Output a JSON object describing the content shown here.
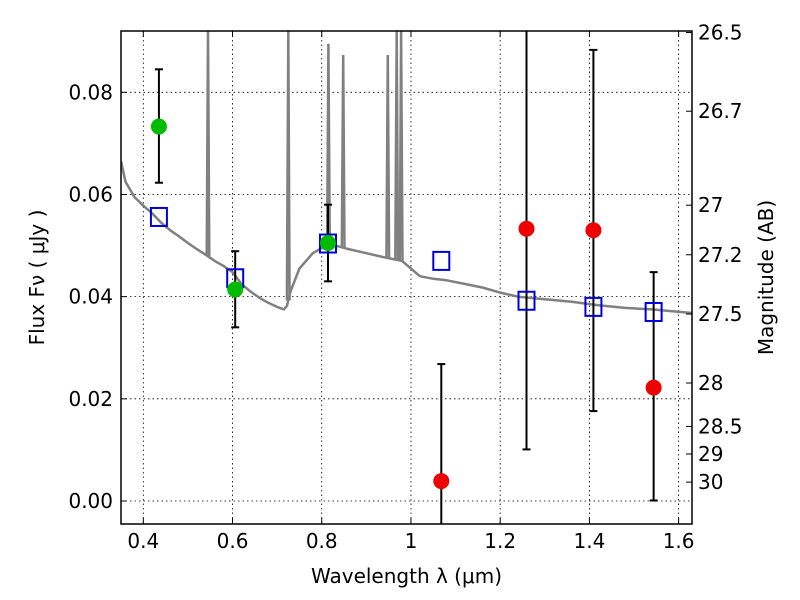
{
  "chart_data": {
    "type": "scatter",
    "xlabel": "Wavelength  λ (μm)",
    "ylabel_left": "Flux  Fν  ( μJy )",
    "ylabel_right": "Magnitude (AB)",
    "xlim": [
      0.35,
      1.63
    ],
    "ylim": [
      -0.0045,
      0.092
    ],
    "x_ticks": [
      0.4,
      0.6,
      0.8,
      1.0,
      1.2,
      1.4,
      1.6
    ],
    "x_tick_labels": [
      "0.4",
      "0.6",
      "0.8",
      "1",
      "1.2",
      "1.4",
      "1.6"
    ],
    "y_ticks": [
      0.0,
      0.02,
      0.04,
      0.06,
      0.08
    ],
    "y_tick_labels": [
      "0.00",
      "0.02",
      "0.04",
      "0.06",
      "0.08"
    ],
    "right_ticks": [
      {
        "label": "26.5",
        "flux": 0.0917
      },
      {
        "label": "26.7",
        "flux": 0.0763
      },
      {
        "label": "27",
        "flux": 0.0579
      },
      {
        "label": "27.2",
        "flux": 0.0482
      },
      {
        "label": "27.5",
        "flux": 0.0366
      },
      {
        "label": "28",
        "flux": 0.0231
      },
      {
        "label": "28.5",
        "flux": 0.0146
      },
      {
        "label": "29",
        "flux": 0.0092
      },
      {
        "label": "30",
        "flux": 0.0037
      }
    ],
    "grid": true,
    "colors": {
      "green_points": "#00bb00",
      "red_points": "#ee0000",
      "model_squares": "#0000dd",
      "spectrum": "#808080",
      "errorbars": "#000000"
    },
    "series": [
      {
        "marker": "circle-green",
        "points": [
          {
            "x": 0.435,
            "y": 0.0733,
            "err_low": 0.0623,
            "err_high": 0.0845
          },
          {
            "x": 0.606,
            "y": 0.0414,
            "err_low": 0.034,
            "err_high": 0.0489
          },
          {
            "x": 0.814,
            "y": 0.0505,
            "err_low": 0.043,
            "err_high": 0.058
          }
        ]
      },
      {
        "marker": "circle-red",
        "points": [
          {
            "x": 1.068,
            "y": 0.0039,
            "err_low": -0.0045,
            "err_high": 0.0268
          },
          {
            "x": 1.259,
            "y": 0.0533,
            "err_low": 0.0101,
            "err_high": 0.092
          },
          {
            "x": 1.409,
            "y": 0.053,
            "err_low": 0.0176,
            "err_high": 0.0883
          },
          {
            "x": 1.544,
            "y": 0.0222,
            "err_low": 0.0001,
            "err_high": 0.0448
          }
        ]
      },
      {
        "marker": "square-blue",
        "points": [
          {
            "x": 0.435,
            "y": 0.0556
          },
          {
            "x": 0.606,
            "y": 0.0436
          },
          {
            "x": 0.814,
            "y": 0.0504
          },
          {
            "x": 1.068,
            "y": 0.047
          },
          {
            "x": 1.259,
            "y": 0.0392
          },
          {
            "x": 1.409,
            "y": 0.038
          },
          {
            "x": 1.544,
            "y": 0.037
          }
        ]
      },
      {
        "marker": "line-gray",
        "continuum": [
          [
            0.35,
            0.0665
          ],
          [
            0.36,
            0.0625
          ],
          [
            0.38,
            0.0595
          ],
          [
            0.4,
            0.0578
          ],
          [
            0.42,
            0.0563
          ],
          [
            0.44,
            0.0545
          ],
          [
            0.46,
            0.053
          ],
          [
            0.48,
            0.0518
          ],
          [
            0.5,
            0.0505
          ],
          [
            0.52,
            0.0493
          ],
          [
            0.54,
            0.0482
          ],
          [
            0.56,
            0.047
          ],
          [
            0.58,
            0.046
          ],
          [
            0.6,
            0.0448
          ],
          [
            0.62,
            0.0425
          ],
          [
            0.64,
            0.041
          ],
          [
            0.66,
            0.0398
          ],
          [
            0.68,
            0.0388
          ],
          [
            0.7,
            0.038
          ],
          [
            0.715,
            0.0375
          ],
          [
            0.722,
            0.0382
          ],
          [
            0.73,
            0.041
          ],
          [
            0.75,
            0.0455
          ],
          [
            0.78,
            0.0485
          ],
          [
            0.8,
            0.0495
          ],
          [
            0.83,
            0.05
          ],
          [
            0.86,
            0.0493
          ],
          [
            0.9,
            0.0485
          ],
          [
            0.94,
            0.0477
          ],
          [
            0.98,
            0.047
          ],
          [
            1.0,
            0.0455
          ],
          [
            1.02,
            0.044
          ],
          [
            1.05,
            0.0435
          ],
          [
            1.08,
            0.0432
          ],
          [
            1.12,
            0.0425
          ],
          [
            1.16,
            0.0418
          ],
          [
            1.2,
            0.0408
          ],
          [
            1.24,
            0.04
          ],
          [
            1.3,
            0.0395
          ],
          [
            1.36,
            0.039
          ],
          [
            1.42,
            0.0383
          ],
          [
            1.48,
            0.0378
          ],
          [
            1.54,
            0.0375
          ],
          [
            1.58,
            0.0372
          ],
          [
            1.63,
            0.0368
          ]
        ],
        "spikes": [
          {
            "x": 0.545,
            "top": 0.092
          },
          {
            "x": 0.725,
            "top": 0.092
          },
          {
            "x": 0.815,
            "top": 0.0895
          },
          {
            "x": 0.848,
            "top": 0.0873
          },
          {
            "x": 0.948,
            "top": 0.0873
          },
          {
            "x": 0.968,
            "top": 0.092
          },
          {
            "x": 0.978,
            "top": 0.092
          }
        ]
      }
    ]
  }
}
